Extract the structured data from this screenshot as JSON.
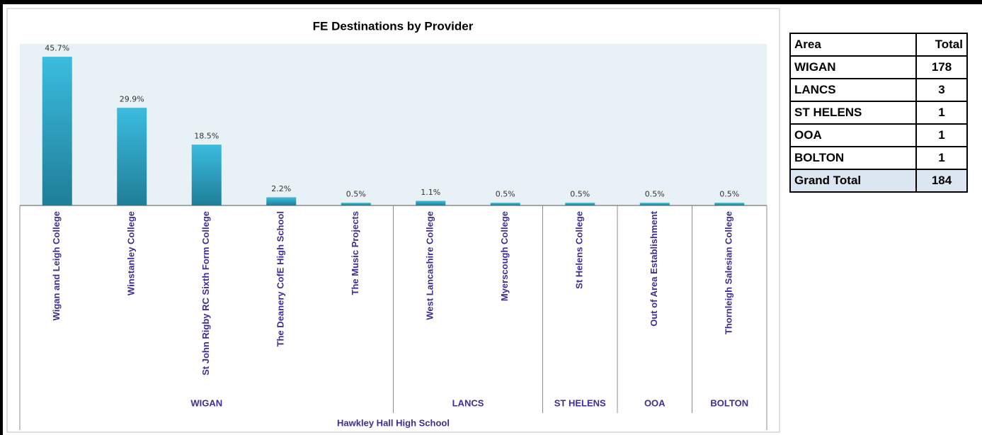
{
  "chart_data": {
    "type": "bar",
    "title": "FE Destinations by Provider",
    "categories": [
      "Wigan and Leigh College",
      "Winstanley College",
      "St John Rigby RC Sixth Form College",
      "The Deanery CofE High School",
      "The Music Projects",
      "West Lancashire College",
      "Myerscough College",
      "St Helens College",
      "Out of Area Establishment",
      "Thornleigh Salesian College"
    ],
    "values": [
      45.7,
      29.9,
      18.5,
      2.2,
      0.5,
      1.1,
      0.5,
      0.5,
      0.5,
      0.5
    ],
    "value_labels": [
      "45.7%",
      "29.9%",
      "18.5%",
      "2.2%",
      "0.5%",
      "1.1%",
      "0.5%",
      "0.5%",
      "0.5%",
      "0.5%"
    ],
    "color": "#2ea3c4",
    "ylim": [
      0,
      50
    ],
    "groups": [
      {
        "name": "WIGAN",
        "size": 5
      },
      {
        "name": "LANCS",
        "size": 2
      },
      {
        "name": "ST HELENS",
        "size": 1
      },
      {
        "name": "OOA",
        "size": 1
      },
      {
        "name": "BOLTON",
        "size": 1
      }
    ],
    "outer_group": "Hawkley Hall High School"
  },
  "table": {
    "header": [
      "Area",
      "Total"
    ],
    "rows": [
      [
        "WIGAN",
        178
      ],
      [
        "LANCS",
        3
      ],
      [
        "ST HELENS",
        1
      ],
      [
        "OOA",
        1
      ],
      [
        "BOLTON",
        1
      ]
    ],
    "footer": [
      "Grand Total",
      184
    ]
  }
}
